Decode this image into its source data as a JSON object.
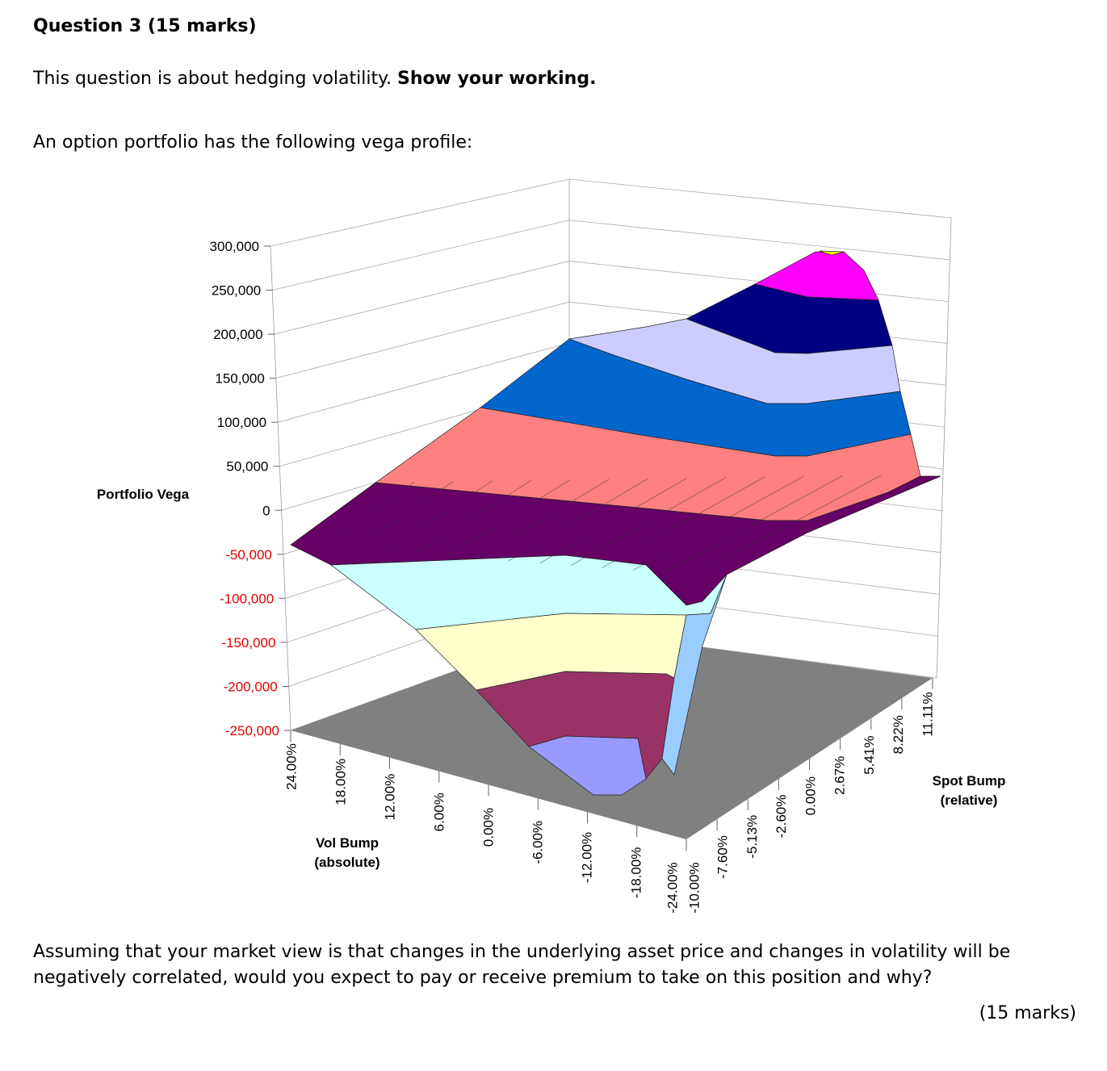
{
  "question": {
    "title": "Question 3 (15 marks)",
    "intro_plain": "This question is about hedging volatility. ",
    "intro_bold": "Show your working.",
    "lead": "An option portfolio has the following vega profile:",
    "body": "Assuming that your market view is that changes in the underlying asset price and changes in volatility will be negatively correlated, would you expect to pay or receive premium to take on this position and why?",
    "marks": "(15 marks)"
  },
  "chart_data": {
    "type": "surface",
    "zlabel": "Portfolio Vega",
    "xlabel": "Vol Bump (absolute)",
    "xlabel_lines": [
      "Vol Bump",
      "(absolute)"
    ],
    "ylabel": "Spot Bump (relative)",
    "ylabel_lines": [
      "Spot Bump",
      "(relative)"
    ],
    "z_ticks": [
      "300,000",
      "250,000",
      "200,000",
      "150,000",
      "100,000",
      "50,000",
      "0",
      "-50,000",
      "-100,000",
      "-150,000",
      "-200,000",
      "-250,000"
    ],
    "z_values": [
      300000,
      250000,
      200000,
      150000,
      100000,
      50000,
      0,
      -50000,
      -100000,
      -150000,
      -200000,
      -250000
    ],
    "zlim": [
      -250000,
      300000
    ],
    "x_ticks": [
      "24.00%",
      "18.00%",
      "12.00%",
      "6.00%",
      "0.00%",
      "-6.00%",
      "-12.00%",
      "-18.00%",
      "-24.00%"
    ],
    "y_ticks": [
      "-10.00%",
      "-7.60%",
      "-5.13%",
      "-2.60%",
      "0.00%",
      "2.67%",
      "5.41%",
      "8.22%",
      "11.11%"
    ],
    "negative_tick_color": "#e00000",
    "floor_color": "#808080",
    "band_colors": [
      "#ff00ff",
      "#000080",
      "#ccccff",
      "#0066cc",
      "#ff8080",
      "#660066",
      "#ccffff",
      "#ffffcc",
      "#993366",
      "#9999ff"
    ],
    "peak_color": "#ffff00",
    "gridlines": true
  }
}
